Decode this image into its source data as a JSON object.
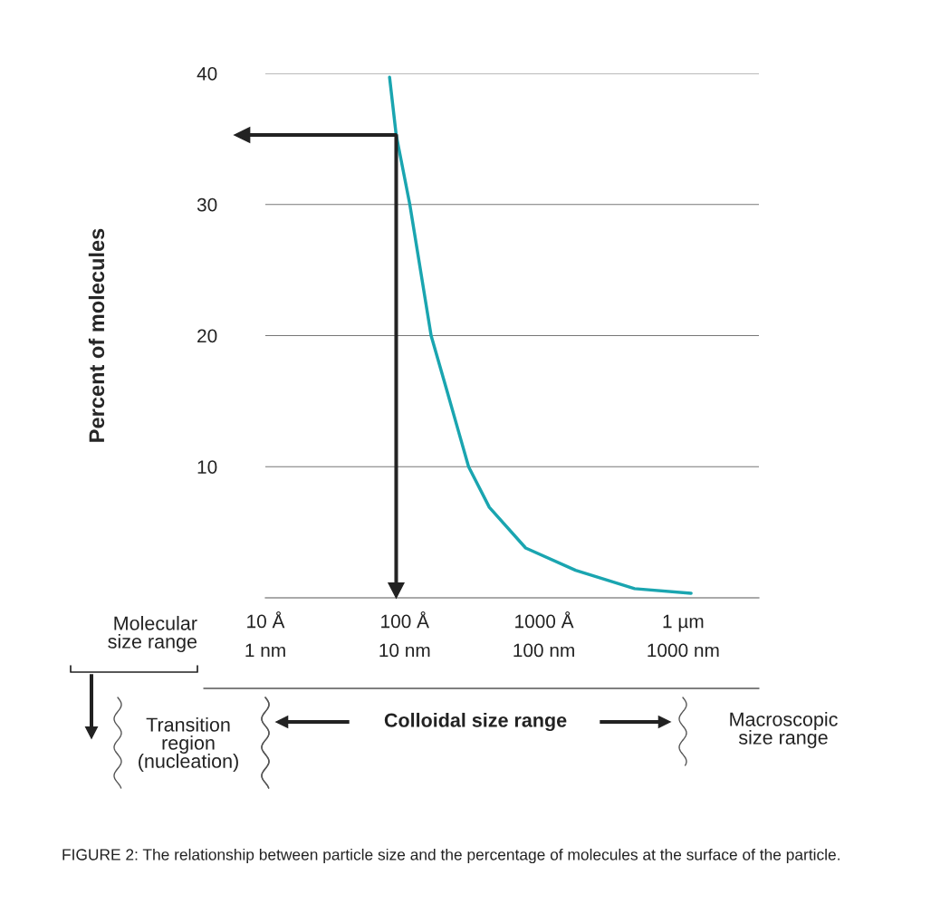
{
  "chart_data": {
    "type": "line",
    "ylabel": "Percent of molecules",
    "log": "x",
    "x": [
      7.8,
      8.7,
      10.9,
      15.5,
      20,
      28.8,
      40.6,
      74,
      169,
      448,
      1140
    ],
    "series": [
      {
        "color": "#1aa5b0",
        "values": [
          39.7,
          35.3,
          30,
          20,
          15.9,
          10,
          6.9,
          3.8,
          2.1,
          0.7,
          0.35
        ]
      }
    ],
    "xlim": [
      1,
      3500
    ],
    "xticks": [
      {
        "value": 1,
        "label": "1 nm"
      },
      {
        "value": 10,
        "label": "10 nm"
      },
      {
        "value": 100,
        "label": "100 nm"
      },
      {
        "value": 1000,
        "label": "1000 nm"
      }
    ],
    "ylim": [
      0,
      40
    ],
    "yticks": [
      10,
      20,
      30,
      40
    ],
    "grid": "y",
    "annotations": [
      "10 Å",
      "100 Å",
      "1000 Å",
      "1 µm",
      "Molecular\nsize range",
      "Transition\nregion\n(nucleation)",
      "Colloidal size range",
      "Macroscopic\nsize range",
      "FIGURE 2: The relationship between particle size and the percentage of molecules at the surface of the particle."
    ]
  }
}
